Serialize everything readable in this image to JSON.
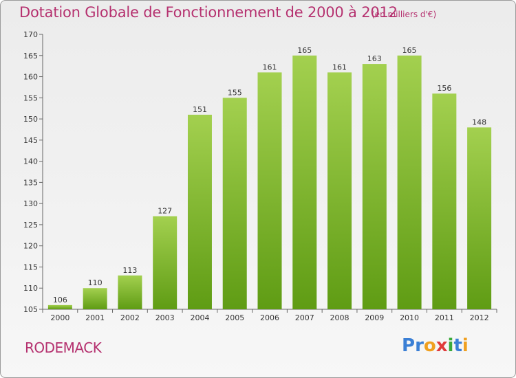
{
  "header": {
    "title": "Dotation Globale de Fonctionnement de 2000 à 2012",
    "unit_note": "(en milliers d'€)"
  },
  "footer": {
    "commune": "RODEMACK",
    "brand": "Proxiti",
    "brand_letters": [
      {
        "ch": "P",
        "color": "#3a7fd5"
      },
      {
        "ch": "r",
        "color": "#3a7fd5"
      },
      {
        "ch": "o",
        "color": "#f0a020"
      },
      {
        "ch": "x",
        "color": "#e03a3a"
      },
      {
        "ch": "i",
        "color": "#3aaa3a"
      },
      {
        "ch": "t",
        "color": "#3a7fd5"
      },
      {
        "ch": "i",
        "color": "#f0a020"
      }
    ]
  },
  "colors": {
    "bar_top": "#a3d04f",
    "bar_bottom": "#5f9c14",
    "title": "#b5316f"
  },
  "chart_data": {
    "type": "bar",
    "title": "Dotation Globale de Fonctionnement de 2000 à 2012",
    "subtitle": "(en milliers d'€)",
    "xlabel": "",
    "ylabel": "",
    "categories": [
      "2000",
      "2001",
      "2002",
      "2003",
      "2004",
      "2005",
      "2006",
      "2007",
      "2008",
      "2009",
      "2010",
      "2011",
      "2012"
    ],
    "values": [
      106,
      110,
      113,
      127,
      151,
      155,
      161,
      165,
      161,
      163,
      165,
      156,
      148
    ],
    "ylim": [
      105,
      170
    ],
    "yticks": [
      105,
      110,
      115,
      120,
      125,
      130,
      135,
      140,
      145,
      150,
      155,
      160,
      165,
      170
    ],
    "grid": false,
    "legend": "none"
  }
}
